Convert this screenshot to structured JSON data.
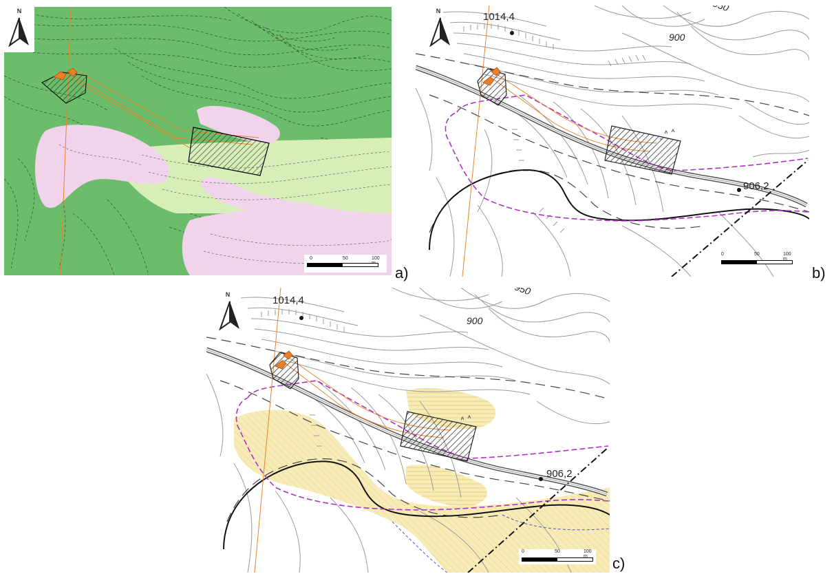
{
  "figure": {
    "panels": [
      {
        "id": "a",
        "label": "a)",
        "base": "green-slope-map",
        "north_letter": "N",
        "scalebar": {
          "tick_0": "0",
          "tick_50": "50",
          "tick_100": "100 m"
        }
      },
      {
        "id": "b",
        "label": "b)",
        "base": "contour-map",
        "north_letter": "N",
        "labels": {
          "elev_top": "1014,4",
          "contour_900": "900",
          "contour_950_partial": "950",
          "elev_road": "906,2"
        },
        "scalebar": {
          "tick_0": "0",
          "tick_50": "50",
          "tick_100": "100 m"
        }
      },
      {
        "id": "c",
        "label": "c)",
        "base": "contour-map-with-hazard",
        "north_letter": "N",
        "labels": {
          "elev_top": "1014,4",
          "contour_900": "900",
          "contour_950_partial": "950",
          "elev_road": "906,2"
        },
        "scalebar": {
          "tick_0": "0",
          "tick_50": "50",
          "tick_100": "100 m"
        }
      }
    ],
    "colors": {
      "green_dark": "#6bbd6b",
      "green_light": "#d7eeb8",
      "pink_zone": "#f2d3ec",
      "yellow_zone": "#f7ecb8",
      "magenta_boundary": "#b030c8",
      "orange_line": "#e8822a",
      "contour_gray": "#9a9a9a"
    }
  }
}
